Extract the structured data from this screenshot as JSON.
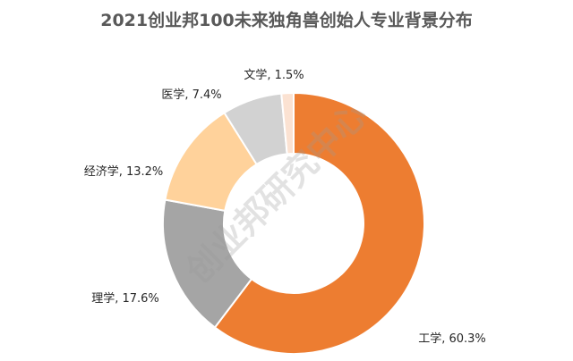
{
  "chart_data": {
    "type": "pie",
    "title": "2021创业邦100未来独角兽创始人专业背景分布",
    "categories": [
      "工学",
      "理学",
      "经济学",
      "医学",
      "文学"
    ],
    "values": [
      60.3,
      17.6,
      13.2,
      7.4,
      1.5
    ],
    "labels": [
      "工学, 60.3%",
      "理学, 17.6%",
      "经济学, 13.2%",
      "医学, 7.4%",
      "文学, 1.5%"
    ],
    "colors": [
      "#ED7D31",
      "#A5A5A5",
      "#FFD29B",
      "#D2D2D2",
      "#FBE2D2"
    ],
    "unit": "%",
    "legend": "none"
  },
  "watermark": "创业邦研究中心"
}
